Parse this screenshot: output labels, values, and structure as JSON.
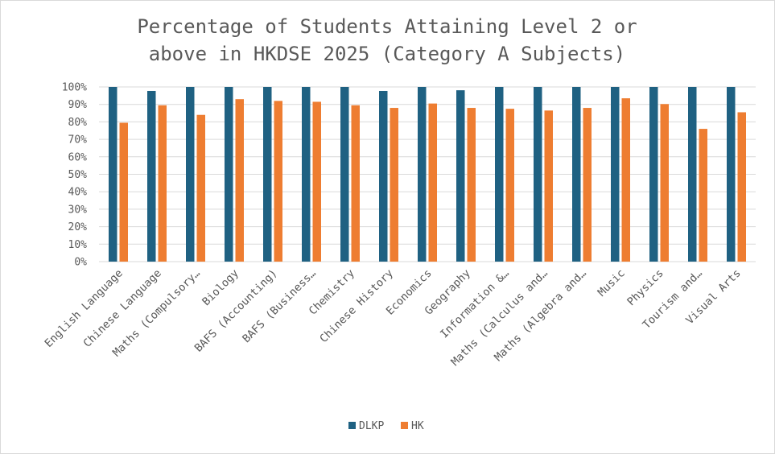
{
  "chart_data": {
    "type": "bar",
    "title": "Percentage of Students Attaining Level 2 or above in HKDSE 2025 (Category A Subjects)",
    "title_lines": [
      "Percentage of Students Attaining Level 2 or",
      "above in HKDSE 2025 (Category A Subjects)"
    ],
    "xlabel": "",
    "ylabel": "",
    "ylim": [
      0,
      100
    ],
    "y_ticks": [
      "0%",
      "10%",
      "20%",
      "30%",
      "40%",
      "50%",
      "60%",
      "70%",
      "80%",
      "90%",
      "100%"
    ],
    "grid": true,
    "legend_position": "bottom",
    "categories": [
      "English Language",
      "Chinese Language",
      "Maths (Compulsory…",
      "Biology",
      "BAFS (Accounting)",
      "BAFS (Business…",
      "Chemistry",
      "Chinese History",
      "Economics",
      "Geography",
      "Information &…",
      "Maths (Calculus and…",
      "Maths (Algebra and…",
      "Music",
      "Physics",
      "Tourism and…",
      "Visual Arts"
    ],
    "series": [
      {
        "name": "DLKP",
        "color": "#1f6182",
        "values": [
          100,
          97.7,
          100,
          100,
          100,
          100,
          100,
          97.7,
          100,
          98.1,
          100,
          100,
          100,
          100,
          100,
          100,
          100
        ]
      },
      {
        "name": "HK",
        "color": "#ee7d31",
        "values": [
          79.5,
          89.5,
          84,
          93,
          92,
          91.5,
          89.5,
          88,
          90.5,
          88,
          87.5,
          86.5,
          88,
          93.5,
          90.2,
          76,
          85.5
        ]
      }
    ]
  }
}
